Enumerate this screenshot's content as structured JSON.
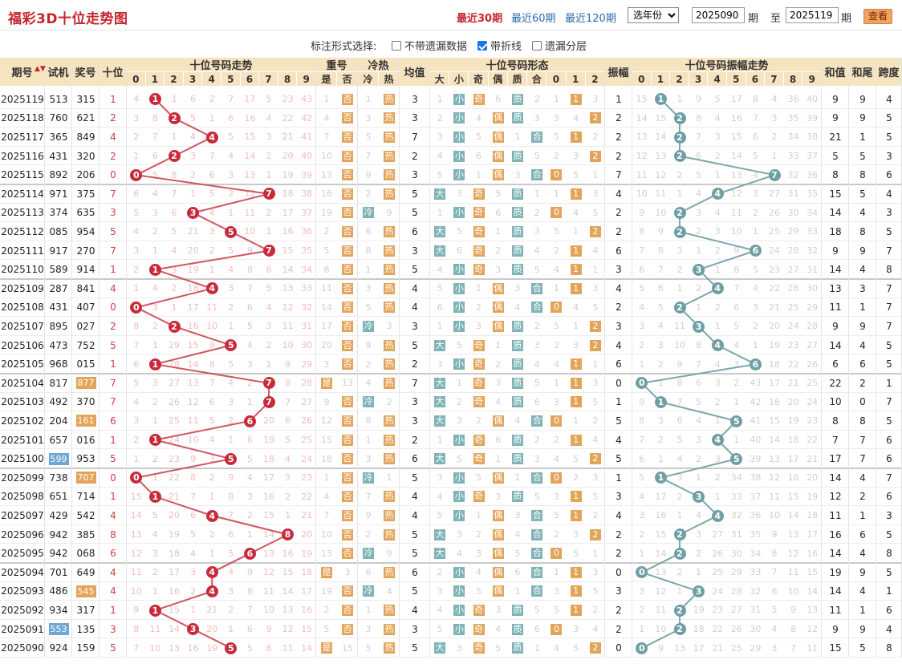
{
  "header": {
    "title": "福彩3D十位走势图",
    "nav": [
      "最近30期",
      "最近60期",
      "最近120期"
    ],
    "year_select": "选年份",
    "from": "2025090",
    "to": "2025119",
    "qi": "期",
    "zhi": "至",
    "view_button": "查看"
  },
  "options": {
    "label": "标注形式选择:",
    "items": [
      {
        "label": "不带遗漏数据",
        "checked": false
      },
      {
        "label": "带折线",
        "checked": true
      },
      {
        "label": "遗漏分层",
        "checked": false
      }
    ]
  },
  "table": {
    "headers": {
      "period": "期号",
      "trial": "试机",
      "prize": "奖号",
      "ten": "十位",
      "trend": "十位号码走势",
      "repeat": "重号",
      "coldhot": "冷热",
      "avg": "均值",
      "form": "十位号码形态",
      "amp": "振幅",
      "amptrend": "十位号码振幅走势",
      "sum": "和值",
      "tail": "和尾",
      "span": "跨度"
    },
    "sub_headers": {
      "digits": [
        "0",
        "1",
        "2",
        "3",
        "4",
        "5",
        "6",
        "7",
        "8",
        "9"
      ],
      "repeat": [
        "是",
        "否"
      ],
      "coldhot": [
        "冷",
        "热"
      ],
      "form": [
        "大",
        "小",
        "奇",
        "偶",
        "质",
        "合",
        "0",
        "1",
        "2"
      ]
    },
    "colors": {
      "header_bg": "#f6e3bf",
      "red_ball": "#c72a3a",
      "teal_ball": "#6f9ea4",
      "orange_tag": "#e3a45a",
      "teal_tag": "#7fb3b6"
    },
    "rows": [
      {
        "p": "2025119",
        "t": "513",
        "n": "315",
        "d": 1,
        "rep": "否",
        "ch": "热",
        "avg": 3,
        "bs": "小",
        "oe": "奇",
        "pc": "质",
        "r3": 1,
        "amp": 1,
        "sum": 9,
        "tail": 9,
        "span": 4
      },
      {
        "p": "2025118",
        "t": "760",
        "n": "621",
        "d": 2,
        "rep": "否",
        "ch": "热",
        "avg": 3,
        "bs": "小",
        "oe": "偶",
        "pc": "质",
        "r3": 2,
        "amp": 2,
        "sum": 9,
        "tail": 9,
        "span": 5
      },
      {
        "p": "2025117",
        "t": "365",
        "n": "849",
        "d": 4,
        "rep": "否",
        "ch": "热",
        "avg": 7,
        "bs": "小",
        "oe": "偶",
        "pc": "合",
        "r3": 1,
        "amp": 2,
        "sum": 21,
        "tail": 1,
        "span": 5
      },
      {
        "p": "2025116",
        "t": "431",
        "n": "320",
        "d": 2,
        "rep": "否",
        "ch": "热",
        "avg": 2,
        "bs": "小",
        "oe": "偶",
        "pc": "质",
        "r3": 2,
        "amp": 2,
        "sum": 5,
        "tail": 5,
        "span": 3
      },
      {
        "p": "2025115",
        "t": "892",
        "n": "206",
        "d": 0,
        "rep": "否",
        "ch": "热",
        "avg": 3,
        "bs": "小",
        "oe": "偶",
        "pc": "合",
        "r3": 0,
        "amp": 7,
        "sum": 8,
        "tail": 8,
        "span": 6
      },
      {
        "p": "2025114",
        "t": "971",
        "n": "375",
        "d": 7,
        "rep": "否",
        "ch": "热",
        "avg": 5,
        "bs": "大",
        "oe": "奇",
        "pc": "质",
        "r3": 1,
        "amp": 4,
        "sum": 15,
        "tail": 5,
        "span": 4
      },
      {
        "p": "2025113",
        "t": "374",
        "n": "635",
        "d": 3,
        "rep": "否",
        "ch": "冷",
        "avg": 5,
        "bs": "小",
        "oe": "奇",
        "pc": "质",
        "r3": 0,
        "amp": 2,
        "sum": 14,
        "tail": 4,
        "span": 3
      },
      {
        "p": "2025112",
        "t": "085",
        "n": "954",
        "d": 5,
        "rep": "否",
        "ch": "热",
        "avg": 6,
        "bs": "大",
        "oe": "奇",
        "pc": "质",
        "r3": 2,
        "amp": 2,
        "sum": 18,
        "tail": 8,
        "span": 5
      },
      {
        "p": "2025111",
        "t": "917",
        "n": "270",
        "d": 7,
        "rep": "否",
        "ch": "热",
        "avg": 3,
        "bs": "大",
        "oe": "奇",
        "pc": "质",
        "r3": 1,
        "amp": 6,
        "sum": 9,
        "tail": 9,
        "span": 7
      },
      {
        "p": "2025110",
        "t": "589",
        "n": "914",
        "d": 1,
        "rep": "否",
        "ch": "热",
        "avg": 5,
        "bs": "小",
        "oe": "奇",
        "pc": "质",
        "r3": 1,
        "amp": 3,
        "sum": 14,
        "tail": 4,
        "span": 8
      },
      {
        "p": "2025109",
        "t": "287",
        "n": "841",
        "d": 4,
        "rep": "否",
        "ch": "热",
        "avg": 4,
        "bs": "小",
        "oe": "偶",
        "pc": "合",
        "r3": 1,
        "amp": 4,
        "sum": 13,
        "tail": 3,
        "span": 7
      },
      {
        "p": "2025108",
        "t": "431",
        "n": "407",
        "d": 0,
        "rep": "否",
        "ch": "热",
        "avg": 4,
        "bs": "小",
        "oe": "偶",
        "pc": "合",
        "r3": 0,
        "amp": 2,
        "sum": 11,
        "tail": 1,
        "span": 7
      },
      {
        "p": "2025107",
        "t": "895",
        "n": "027",
        "d": 2,
        "rep": "否",
        "ch": "冷",
        "avg": 3,
        "bs": "小",
        "oe": "偶",
        "pc": "质",
        "r3": 2,
        "amp": 3,
        "sum": 9,
        "tail": 9,
        "span": 7
      },
      {
        "p": "2025106",
        "t": "473",
        "n": "752",
        "d": 5,
        "rep": "否",
        "ch": "热",
        "avg": 5,
        "bs": "大",
        "oe": "奇",
        "pc": "质",
        "r3": 2,
        "amp": 4,
        "sum": 14,
        "tail": 4,
        "span": 5
      },
      {
        "p": "2025105",
        "t": "968",
        "n": "015",
        "d": 1,
        "rep": "否",
        "ch": "热",
        "avg": 2,
        "bs": "小",
        "oe": "奇",
        "pc": "质",
        "r3": 1,
        "amp": 6,
        "sum": 6,
        "tail": 6,
        "span": 5
      },
      {
        "p": "2025104",
        "t": "817",
        "n": "877",
        "d": 7,
        "rep": "是",
        "ch": "热",
        "avg": 7,
        "bs": "大",
        "oe": "奇",
        "pc": "质",
        "r3": 1,
        "amp": 0,
        "sum": 22,
        "tail": 2,
        "span": 1,
        "tagN": "o"
      },
      {
        "p": "2025103",
        "t": "492",
        "n": "370",
        "d": 7,
        "rep": "否",
        "ch": "冷",
        "avg": 3,
        "bs": "大",
        "oe": "奇",
        "pc": "质",
        "r3": 1,
        "amp": 1,
        "sum": 10,
        "tail": 0,
        "span": 7
      },
      {
        "p": "2025102",
        "t": "204",
        "n": "161",
        "d": 6,
        "rep": "否",
        "ch": "热",
        "avg": 3,
        "bs": "大",
        "oe": "偶",
        "pc": "合",
        "r3": 0,
        "amp": 5,
        "sum": 8,
        "tail": 8,
        "span": 5,
        "tagN": "o"
      },
      {
        "p": "2025101",
        "t": "657",
        "n": "016",
        "d": 1,
        "rep": "否",
        "ch": "热",
        "avg": 2,
        "bs": "小",
        "oe": "奇",
        "pc": "质",
        "r3": 1,
        "amp": 4,
        "sum": 7,
        "tail": 7,
        "span": 6
      },
      {
        "p": "2025100",
        "t": "599",
        "n": "953",
        "d": 5,
        "rep": "否",
        "ch": "热",
        "avg": 6,
        "bs": "大",
        "oe": "奇",
        "pc": "质",
        "r3": 2,
        "amp": 5,
        "sum": 17,
        "tail": 7,
        "span": 6,
        "tagT": "b"
      },
      {
        "p": "2025099",
        "t": "738",
        "n": "707",
        "d": 0,
        "rep": "否",
        "ch": "冷",
        "avg": 5,
        "bs": "小",
        "oe": "偶",
        "pc": "合",
        "r3": 0,
        "amp": 1,
        "sum": 14,
        "tail": 4,
        "span": 7,
        "tagN": "o"
      },
      {
        "p": "2025098",
        "t": "651",
        "n": "714",
        "d": 1,
        "rep": "否",
        "ch": "热",
        "avg": 4,
        "bs": "小",
        "oe": "奇",
        "pc": "质",
        "r3": 1,
        "amp": 3,
        "sum": 12,
        "tail": 2,
        "span": 6
      },
      {
        "p": "2025097",
        "t": "429",
        "n": "542",
        "d": 4,
        "rep": "否",
        "ch": "热",
        "avg": 4,
        "bs": "小",
        "oe": "偶",
        "pc": "合",
        "r3": 1,
        "amp": 4,
        "sum": 11,
        "tail": 1,
        "span": 3
      },
      {
        "p": "2025096",
        "t": "942",
        "n": "385",
        "d": 8,
        "rep": "否",
        "ch": "热",
        "avg": 5,
        "bs": "大",
        "oe": "偶",
        "pc": "合",
        "r3": 2,
        "amp": 2,
        "sum": 16,
        "tail": 6,
        "span": 5
      },
      {
        "p": "2025095",
        "t": "942",
        "n": "068",
        "d": 6,
        "rep": "否",
        "ch": "冷",
        "avg": 5,
        "bs": "大",
        "oe": "偶",
        "pc": "合",
        "r3": 0,
        "amp": 2,
        "sum": 14,
        "tail": 4,
        "span": 8
      },
      {
        "p": "2025094",
        "t": "701",
        "n": "649",
        "d": 4,
        "rep": "是",
        "ch": "热",
        "avg": 6,
        "bs": "小",
        "oe": "偶",
        "pc": "合",
        "r3": 1,
        "amp": 0,
        "sum": 19,
        "tail": 9,
        "span": 5
      },
      {
        "p": "2025093",
        "t": "486",
        "n": "545",
        "d": 4,
        "rep": "否",
        "ch": "冷",
        "avg": 5,
        "bs": "小",
        "oe": "偶",
        "pc": "合",
        "r3": 1,
        "amp": 3,
        "sum": 14,
        "tail": 4,
        "span": 1,
        "tagN": "o"
      },
      {
        "p": "2025092",
        "t": "934",
        "n": "317",
        "d": 1,
        "rep": "否",
        "ch": "热",
        "avg": 4,
        "bs": "小",
        "oe": "奇",
        "pc": "质",
        "r3": 1,
        "amp": 2,
        "sum": 11,
        "tail": 1,
        "span": 6
      },
      {
        "p": "2025091",
        "t": "553",
        "n": "135",
        "d": 3,
        "rep": "否",
        "ch": "热",
        "avg": 3,
        "bs": "小",
        "oe": "奇",
        "pc": "质",
        "r3": 0,
        "amp": 2,
        "sum": 9,
        "tail": 9,
        "span": 4,
        "tagT": "b"
      },
      {
        "p": "2025090",
        "t": "924",
        "n": "159",
        "d": 5,
        "rep": "是",
        "ch": "热",
        "avg": 5,
        "bs": "大",
        "oe": "奇",
        "pc": "质",
        "r3": 2,
        "amp": 0,
        "sum": 15,
        "tail": 5,
        "span": 8
      }
    ]
  }
}
